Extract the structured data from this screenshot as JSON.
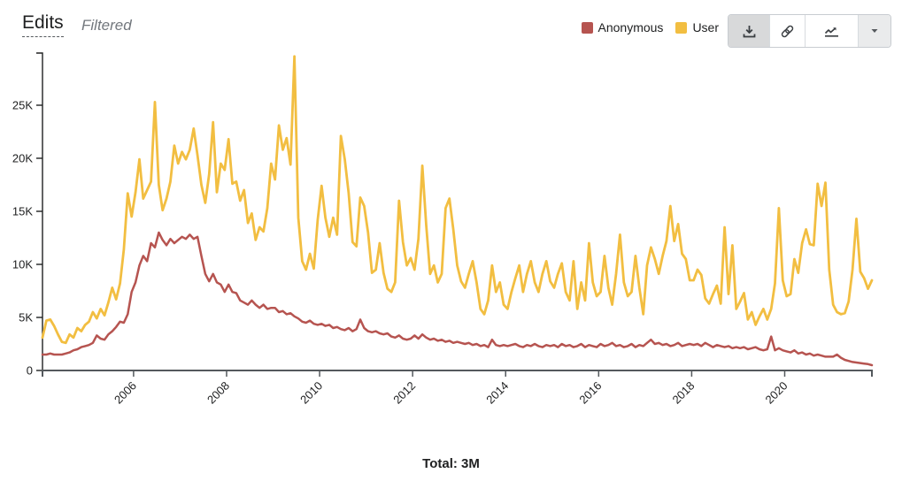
{
  "header": {
    "title": "Edits",
    "subtitle": "Filtered"
  },
  "toolbar": {
    "buttons": [
      {
        "name": "download",
        "icon": "download-icon"
      },
      {
        "name": "permalink",
        "icon": "link-icon"
      },
      {
        "name": "chart-type",
        "icon": "line-chart-icon"
      },
      {
        "name": "more-options",
        "icon": "caret-down-icon"
      }
    ]
  },
  "footer": {
    "total_label": "Total: 3M"
  },
  "chart_data": {
    "type": "line",
    "title": "Edits",
    "subtitle": "Filtered",
    "interval": "monthly",
    "x_start": "2004-01",
    "x_end": "2021-11",
    "x_start_year": 2004,
    "x_ticks": [
      2006,
      2008,
      2010,
      2012,
      2014,
      2016,
      2018,
      2020
    ],
    "x_tick_labels": [
      "2006",
      "2008",
      "2010",
      "2012",
      "2014",
      "2016",
      "2018",
      "2020"
    ],
    "y_ticks": [
      0,
      5000,
      10000,
      15000,
      20000,
      25000
    ],
    "y_tick_labels": [
      "0",
      "5K",
      "10K",
      "15K",
      "20K",
      "25K"
    ],
    "ylim": [
      0,
      29800
    ],
    "grid": false,
    "legend_position": "top-right",
    "total": "Total: 3M",
    "axis_colors": {
      "y_axis": "#202122",
      "x_axis": "#54595d"
    },
    "series": [
      {
        "name": "Anonymous",
        "color": "#b65450",
        "values": [
          1500,
          1500,
          1600,
          1500,
          1500,
          1500,
          1600,
          1700,
          1900,
          2000,
          2200,
          2300,
          2400,
          2600,
          3300,
          3000,
          2900,
          3400,
          3700,
          4100,
          4600,
          4500,
          5300,
          7400,
          8300,
          9900,
          10800,
          10300,
          12000,
          11600,
          13000,
          12300,
          11800,
          12400,
          12000,
          12300,
          12600,
          12400,
          12800,
          12400,
          12600,
          10800,
          9100,
          8400,
          9100,
          8300,
          8100,
          7400,
          8100,
          7400,
          7300,
          6600,
          6400,
          6200,
          6600,
          6200,
          5900,
          6200,
          5800,
          5900,
          5900,
          5500,
          5600,
          5300,
          5400,
          5100,
          4900,
          4600,
          4500,
          4700,
          4400,
          4300,
          4400,
          4200,
          4300,
          4000,
          4100,
          3900,
          3800,
          4000,
          3700,
          3900,
          4800,
          4000,
          3700,
          3600,
          3700,
          3500,
          3400,
          3500,
          3200,
          3100,
          3300,
          3000,
          2900,
          3000,
          3300,
          3000,
          3400,
          3100,
          2900,
          3000,
          2800,
          2900,
          2700,
          2800,
          2600,
          2700,
          2600,
          2500,
          2600,
          2400,
          2500,
          2300,
          2400,
          2200,
          2900,
          2400,
          2300,
          2400,
          2300,
          2400,
          2500,
          2300,
          2200,
          2400,
          2300,
          2500,
          2300,
          2200,
          2400,
          2300,
          2400,
          2200,
          2500,
          2300,
          2400,
          2200,
          2300,
          2500,
          2200,
          2400,
          2300,
          2200,
          2500,
          2300,
          2400,
          2600,
          2300,
          2400,
          2200,
          2300,
          2500,
          2200,
          2400,
          2300,
          2600,
          2900,
          2500,
          2600,
          2400,
          2500,
          2300,
          2400,
          2600,
          2300,
          2400,
          2500,
          2400,
          2500,
          2300,
          2600,
          2400,
          2200,
          2400,
          2300,
          2200,
          2300,
          2100,
          2200,
          2100,
          2200,
          2000,
          2100,
          2200,
          2000,
          1900,
          2000,
          3200,
          1900,
          2100,
          1900,
          1800,
          1700,
          1900,
          1600,
          1700,
          1500,
          1600,
          1400,
          1500,
          1400,
          1300,
          1300,
          1300,
          1500,
          1200,
          1000,
          900,
          800,
          750,
          700,
          650,
          600,
          500
        ]
      },
      {
        "name": "User",
        "color": "#f2be41",
        "values": [
          3100,
          4700,
          4800,
          4200,
          3400,
          2700,
          2600,
          3400,
          3100,
          4000,
          3700,
          4300,
          4600,
          5500,
          4900,
          5800,
          5200,
          6400,
          7800,
          6700,
          8200,
          11400,
          16700,
          14500,
          16800,
          19900,
          16200,
          17000,
          17800,
          25300,
          17500,
          15100,
          16200,
          17800,
          21200,
          19500,
          20600,
          19900,
          20800,
          22800,
          20300,
          17500,
          15800,
          18500,
          23400,
          16800,
          19500,
          18900,
          21800,
          17600,
          17800,
          16000,
          17000,
          13900,
          14800,
          12300,
          13500,
          13100,
          15300,
          19500,
          18000,
          23100,
          20800,
          21900,
          19400,
          29600,
          14400,
          10300,
          9500,
          11000,
          9600,
          14200,
          17400,
          14400,
          12600,
          14400,
          12800,
          22100,
          19900,
          16700,
          12100,
          11700,
          16300,
          15500,
          13000,
          9200,
          9500,
          12000,
          9200,
          7700,
          7400,
          8300,
          16000,
          12100,
          9900,
          10600,
          9500,
          12400,
          19300,
          13700,
          9100,
          9900,
          8300,
          9100,
          15300,
          16200,
          13300,
          9900,
          8400,
          7800,
          9100,
          10300,
          8300,
          5800,
          5300,
          6600,
          9900,
          7400,
          8300,
          6200,
          5800,
          7400,
          8700,
          9900,
          7400,
          9100,
          10300,
          8300,
          7400,
          9100,
          10300,
          8400,
          7800,
          9100,
          10100,
          7400,
          6600,
          10300,
          5800,
          8300,
          6600,
          12000,
          8300,
          7000,
          7400,
          10800,
          7800,
          6200,
          9100,
          12800,
          8300,
          7000,
          7400,
          10800,
          7800,
          5300,
          9900,
          11600,
          10500,
          9100,
          10800,
          12200,
          15500,
          12200,
          13800,
          11000,
          10500,
          8500,
          8500,
          9500,
          9000,
          6800,
          6300,
          7200,
          8000,
          6300,
          13500,
          7200,
          11800,
          5800,
          6500,
          7300,
          4800,
          5500,
          4300,
          5100,
          5800,
          4800,
          5800,
          8200,
          15300,
          8500,
          7000,
          7200,
          10500,
          9200,
          12000,
          13300,
          11900,
          11800,
          17600,
          15500,
          17700,
          9500,
          6200,
          5500,
          5300,
          5400,
          6500,
          9500,
          14300,
          9300,
          8700,
          7700,
          8500
        ]
      }
    ]
  }
}
